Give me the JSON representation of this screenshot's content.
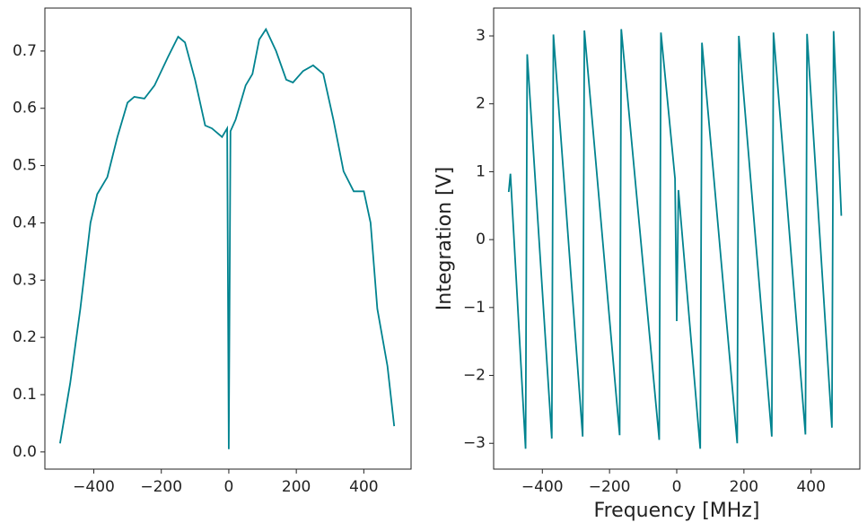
{
  "chart_data": [
    {
      "type": "line",
      "color": "#00838f",
      "x": [
        -500,
        -470,
        -440,
        -410,
        -390,
        -360,
        -330,
        -300,
        -280,
        -250,
        -220,
        -180,
        -150,
        -130,
        -100,
        -70,
        -50,
        -20,
        -5,
        0,
        5,
        20,
        50,
        70,
        90,
        110,
        140,
        170,
        190,
        220,
        250,
        280,
        310,
        340,
        370,
        400,
        420,
        440,
        470,
        490
      ],
      "series": [
        {
          "color": "#00838f",
          "values": [
            0.015,
            0.12,
            0.25,
            0.4,
            0.45,
            0.48,
            0.55,
            0.61,
            0.62,
            0.617,
            0.64,
            0.69,
            0.725,
            0.715,
            0.65,
            0.57,
            0.565,
            0.55,
            0.565,
            0.005,
            0.56,
            0.58,
            0.64,
            0.66,
            0.72,
            0.738,
            0.7,
            0.65,
            0.645,
            0.665,
            0.675,
            0.66,
            0.58,
            0.49,
            0.455,
            0.455,
            0.4,
            0.25,
            0.15,
            0.045
          ]
        }
      ],
      "xlim": [
        -545,
        540
      ],
      "ylim": [
        -0.03,
        0.775
      ],
      "xticks": [
        {
          "value": -400,
          "label": "−400"
        },
        {
          "value": -200,
          "label": "−200"
        },
        0,
        200,
        400
      ],
      "yticks": [
        {
          "value": 0,
          "label": "0.0"
        },
        0.1,
        0.2,
        0.3,
        0.4,
        0.5,
        0.6,
        0.7
      ]
    },
    {
      "type": "line",
      "color": "#00838f",
      "xlabel": "Frequency [MHz]",
      "ylabel": "Integration [V]",
      "x": [
        -500,
        -495,
        -450,
        -445,
        -372,
        -367,
        -280,
        -275,
        -170,
        -165,
        -52,
        -47,
        -5,
        0,
        5,
        70,
        75,
        180,
        185,
        283,
        288,
        383,
        388,
        462,
        467,
        490
      ],
      "series": [
        {
          "color": "#00838f",
          "values": [
            0.7,
            0.97,
            -3.08,
            2.73,
            -2.93,
            3.02,
            -2.9,
            3.08,
            -2.88,
            3.1,
            -2.95,
            3.05,
            0.9,
            -1.2,
            0.73,
            -3.08,
            2.9,
            -3.0,
            3.0,
            -2.9,
            3.05,
            -2.87,
            3.03,
            -2.77,
            3.07,
            0.35
          ]
        }
      ],
      "xlim": [
        -545,
        545
      ],
      "ylim": [
        -3.38,
        3.41
      ],
      "xticks": [
        {
          "value": -400,
          "label": "−400"
        },
        {
          "value": -200,
          "label": "−200"
        },
        0,
        200,
        400
      ],
      "yticks": [
        {
          "value": -3,
          "label": "−3"
        },
        {
          "value": -2,
          "label": "−2"
        },
        {
          "value": -1,
          "label": "−1"
        },
        0,
        1,
        2,
        3
      ]
    }
  ]
}
